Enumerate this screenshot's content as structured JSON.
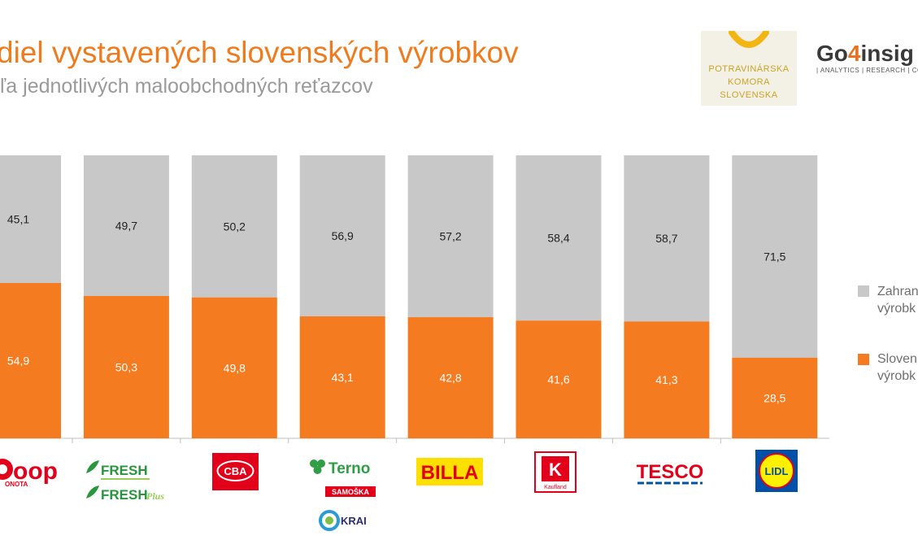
{
  "header": {
    "title": "diel vystavených slovenských výrobkov",
    "subtitle": "ľa jednotlivých maloobchodných reťazcov"
  },
  "logos": {
    "pks": {
      "line1": "POTRAVINÁRSKA",
      "line2": "KOMORA",
      "line3": "SLOVENSKA"
    },
    "go4": {
      "brand_a": "Go",
      "brand_b": "4",
      "brand_c": "insig",
      "tagline": "| ANALYTICS | RESEARCH | CO"
    }
  },
  "colors": {
    "accent": "#ee7b1e",
    "foreign": "#c8c8c8",
    "slovak": "#f47b20"
  },
  "retailers": {
    "coop": {
      "text": "oop",
      "sub": "ONOTA"
    },
    "fresh": {
      "line1": "FRESH",
      "line2": "FRESH",
      "plus": "Plus"
    },
    "cba": {
      "text": "CBA"
    },
    "terno": {
      "name": "Terno",
      "samoska": "SAMOŠKA",
      "krai": "KRAI"
    },
    "billa": {
      "text": "BILLA"
    },
    "kaufland": {
      "letter": "K",
      "text": "Kaufland"
    },
    "tesco": {
      "text": "TESCO"
    },
    "lidl": {
      "text": "LIDL"
    }
  },
  "chart_data": {
    "type": "bar",
    "stacked": true,
    "percent_scale": true,
    "categories": [
      "COOP Jednota",
      "FRESH / FRESH Plus",
      "CBA",
      "Terno / SAMOŠKA / KRAI",
      "BILLA",
      "Kaufland",
      "TESCO",
      "LIDL"
    ],
    "series": [
      {
        "name": "Slovenské výrobky",
        "legend_visible": "Sloven výrobk",
        "color": "#f47b20",
        "values": [
          54.9,
          50.3,
          49.8,
          43.1,
          42.8,
          41.6,
          41.3,
          28.5
        ]
      },
      {
        "name": "Zahraničné výrobky",
        "legend_visible": "Zahran výrobk",
        "color": "#c8c8c8",
        "values": [
          45.1,
          49.7,
          50.2,
          56.9,
          57.2,
          58.4,
          58.7,
          71.5
        ]
      }
    ],
    "legend": [
      {
        "line1": "Zahran",
        "line2": "výrobk",
        "color": "#c8c8c8"
      },
      {
        "line1": "Sloven",
        "line2": "výrobk",
        "color": "#f47b20"
      }
    ],
    "data_labels": {
      "slovak": [
        "54,9",
        "50,3",
        "49,8",
        "43,1",
        "42,8",
        "41,6",
        "41,3",
        "28,5"
      ],
      "foreign": [
        "45,1",
        "49,7",
        "50,2",
        "56,9",
        "57,2",
        "58,4",
        "58,7",
        "71,5"
      ]
    },
    "ylim": [
      0,
      100
    ],
    "legend_position": "right",
    "grid": false
  }
}
